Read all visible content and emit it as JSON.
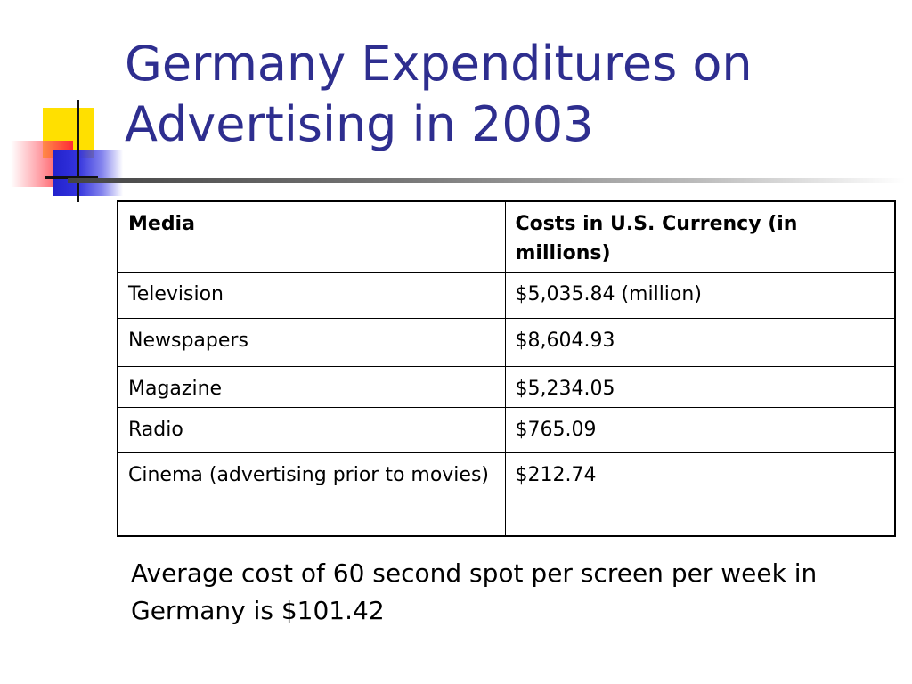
{
  "slide": {
    "title_line1": "Germany Expenditures on",
    "title_line2": "Advertising in 2003",
    "table": {
      "headers": [
        "Media",
        "Costs in U.S. Currency (in millions)"
      ],
      "rows": [
        [
          "Television",
          "$5,035.84 (million)"
        ],
        [
          "Newspapers",
          "$8,604.93"
        ],
        [
          "Magazine",
          "$5,234.05"
        ],
        [
          "Radio",
          "$765.09"
        ],
        [
          "Cinema (advertising prior to movies)",
          "$212.74"
        ]
      ]
    },
    "note": "Average cost of 60 second spot per screen per week in Germany is $101.42"
  },
  "colors": {
    "title": "#2e2e8f",
    "accent_yellow": "#ffe000",
    "accent_red": "#ff2a35",
    "accent_blue": "#2222cc"
  }
}
